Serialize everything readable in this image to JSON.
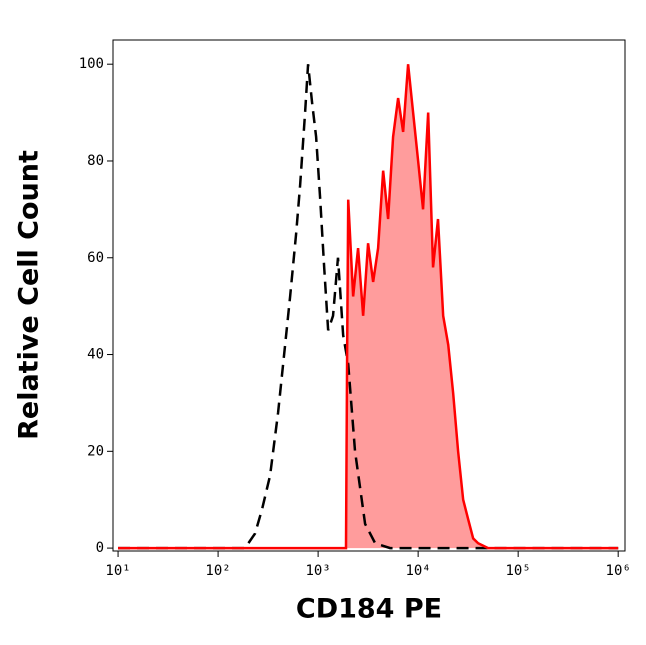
{
  "chart_data": {
    "type": "histogram-overlay",
    "x_label": "CD184 PE",
    "y_label": "Relative Cell Count",
    "x_scale": "log",
    "xlim": [
      8.9,
      1170000
    ],
    "xticks": [
      {
        "value": 10,
        "label": "10¹"
      },
      {
        "value": 100,
        "label": "10²"
      },
      {
        "value": 1000,
        "label": "10³"
      },
      {
        "value": 10000,
        "label": "10⁴"
      },
      {
        "value": 100000,
        "label": "10⁵"
      },
      {
        "value": 1000000,
        "label": "10⁶"
      }
    ],
    "ylim": [
      -0.6,
      105
    ],
    "yticks": [
      0,
      20,
      40,
      60,
      80,
      100
    ],
    "series": [
      {
        "color": "#000000",
        "dashed": true,
        "x": [
          10,
          186,
          234,
          275,
          331,
          398,
          468,
          525,
          603,
          661,
          741,
          794,
          871,
          955,
          1050,
          1150,
          1260,
          1410,
          1580,
          1780,
          2000,
          2340,
          2950,
          3720,
          5250,
          1000000
        ],
        "values": [
          0,
          0,
          3,
          8,
          15,
          28,
          42,
          52,
          65,
          75,
          90,
          100,
          92,
          85,
          72,
          58,
          45,
          48,
          60,
          44,
          38,
          20,
          5,
          1,
          0,
          0
        ]
      },
      {
        "color": "#ff0000",
        "fill": "#ff9c9c",
        "dashed": false,
        "x": [
          10,
          1900,
          1950,
          2000,
          2240,
          2510,
          2820,
          3160,
          3550,
          3980,
          4470,
          5010,
          5620,
          6310,
          7080,
          7940,
          8910,
          10000,
          11200,
          12600,
          14100,
          15800,
          17800,
          20000,
          22400,
          25100,
          28200,
          31600,
          35500,
          39800,
          50100,
          1000000
        ],
        "values": [
          0,
          0,
          40,
          72,
          52,
          62,
          48,
          63,
          55,
          62,
          78,
          68,
          85,
          93,
          86,
          100,
          90,
          80,
          70,
          90,
          58,
          68,
          48,
          42,
          32,
          20,
          10,
          6,
          2,
          1,
          0,
          0
        ]
      }
    ]
  }
}
